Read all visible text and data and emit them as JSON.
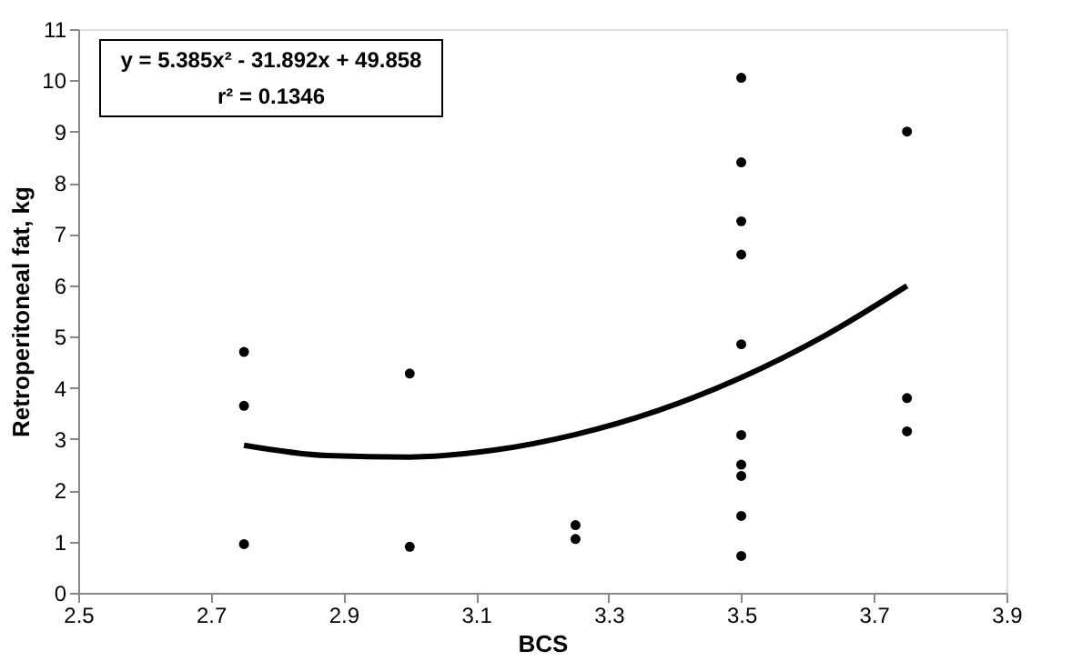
{
  "chart_data": {
    "type": "scatter",
    "xlabel": "BCS",
    "ylabel": "Retroperitoneal fat, kg",
    "xlim": [
      2.5,
      3.9
    ],
    "xticks": [
      2.5,
      2.7,
      2.9,
      3.1,
      3.3,
      3.5,
      3.7,
      3.9
    ],
    "ylim": [
      0,
      11
    ],
    "yticks": [
      0,
      1,
      2,
      3,
      4,
      5,
      6,
      7,
      8,
      9,
      10,
      11
    ],
    "grid": false,
    "annotations": [
      "y = 5.385x² - 31.892x + 49.858",
      "r² = 0.1346"
    ],
    "series": [
      {
        "color": "#000000",
        "marker": "circle",
        "x": [
          2.75,
          2.75,
          2.75,
          3.0,
          3.0,
          3.25,
          3.25,
          3.5,
          3.5,
          3.5,
          3.5,
          3.5,
          3.5,
          3.5,
          3.5,
          3.5,
          3.5,
          3.75,
          3.75,
          3.75
        ],
        "values": [
          4.7,
          3.65,
          0.95,
          4.28,
          0.9,
          1.32,
          1.05,
          10.05,
          8.4,
          7.25,
          6.6,
          4.85,
          3.08,
          2.5,
          2.28,
          1.5,
          0.72,
          9.0,
          3.8,
          3.15
        ]
      },
      {
        "type": "line",
        "color": "#000000",
        "marker": "none",
        "line_style": "solid",
        "x": [
          2.75,
          2.875,
          3.0,
          3.125,
          3.25,
          3.375,
          3.5,
          3.625,
          3.75
        ],
        "values": [
          2.88,
          2.68,
          2.65,
          2.78,
          3.09,
          3.56,
          4.2,
          5.01,
          5.99
        ]
      }
    ]
  }
}
